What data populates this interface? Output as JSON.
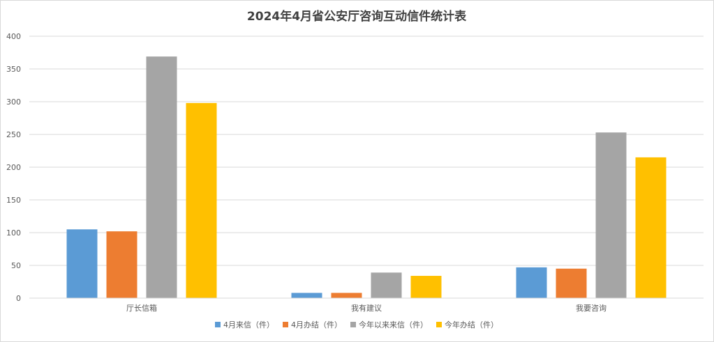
{
  "chart_data": {
    "type": "bar",
    "title": "2024年4月省公安厅咨询互动信件统计表",
    "categories": [
      "厅长信箱",
      "我有建议",
      "我要咨询"
    ],
    "series": [
      {
        "name": "4月来信（件）",
        "color": "#5b9bd5",
        "values": [
          105,
          8,
          47
        ]
      },
      {
        "name": "4月办结（件）",
        "color": "#ed7d31",
        "values": [
          102,
          8,
          45
        ]
      },
      {
        "name": "今年以来来信（件）",
        "color": "#a5a5a5",
        "values": [
          369,
          39,
          253
        ]
      },
      {
        "name": "今年办结（件）",
        "color": "#ffc000",
        "values": [
          298,
          34,
          215
        ]
      }
    ],
    "ylim": [
      0,
      400
    ],
    "yticks": [
      0,
      50,
      100,
      150,
      200,
      250,
      300,
      350,
      400
    ],
    "grid": true,
    "legend_position": "bottom",
    "gridline_color": "#d9d9d9"
  }
}
